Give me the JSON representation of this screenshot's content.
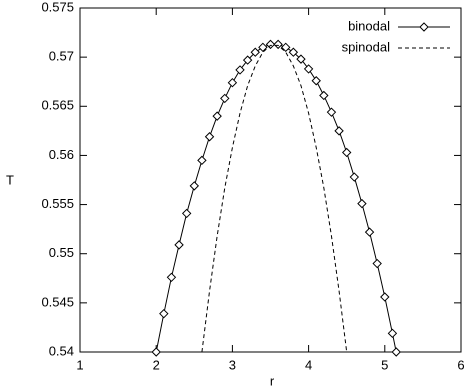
{
  "chart_data": {
    "type": "line",
    "xlabel": "r",
    "ylabel": "T",
    "xlim": [
      1,
      6
    ],
    "ylim": [
      0.54,
      0.575
    ],
    "xticks": [
      1,
      2,
      3,
      4,
      5,
      6
    ],
    "yticks": [
      0.54,
      0.545,
      0.55,
      0.555,
      0.56,
      0.565,
      0.57,
      0.575
    ],
    "legend": "top-right",
    "series": [
      {
        "name": "binodal",
        "color": "#000000",
        "marker": "diamond",
        "dash": "solid",
        "x": [
          2.0,
          2.1,
          2.2,
          2.3,
          2.4,
          2.5,
          2.6,
          2.7,
          2.8,
          2.9,
          3.0,
          3.1,
          3.2,
          3.3,
          3.4,
          3.5,
          3.6,
          3.7,
          3.8,
          3.9,
          4.0,
          4.1,
          4.2,
          4.3,
          4.4,
          4.5,
          4.6,
          4.7,
          4.8,
          4.9,
          5.0,
          5.1,
          5.15
        ],
        "y": [
          0.54,
          0.5439,
          0.5476,
          0.5509,
          0.5541,
          0.5569,
          0.5595,
          0.5619,
          0.564,
          0.5658,
          0.5674,
          0.5687,
          0.5697,
          0.5705,
          0.571,
          0.5713,
          0.5713,
          0.571,
          0.5705,
          0.5698,
          0.5688,
          0.5676,
          0.5661,
          0.5644,
          0.5625,
          0.5603,
          0.5578,
          0.5551,
          0.5522,
          0.549,
          0.5456,
          0.5419,
          0.54
        ]
      },
      {
        "name": "spinodal",
        "color": "#000000",
        "marker": "none",
        "dash": "dashed",
        "x": [
          2.6,
          2.7,
          2.8,
          2.9,
          3.0,
          3.1,
          3.2,
          3.3,
          3.4,
          3.5,
          3.6,
          3.7,
          3.8,
          3.9,
          4.0,
          4.1,
          4.2,
          4.3,
          4.4,
          4.5
        ],
        "y": [
          0.54,
          0.5462,
          0.5518,
          0.5567,
          0.5608,
          0.5643,
          0.5671,
          0.5691,
          0.5705,
          0.5712,
          0.5712,
          0.5705,
          0.5691,
          0.5671,
          0.5643,
          0.5608,
          0.5567,
          0.5518,
          0.5462,
          0.54
        ]
      }
    ]
  }
}
